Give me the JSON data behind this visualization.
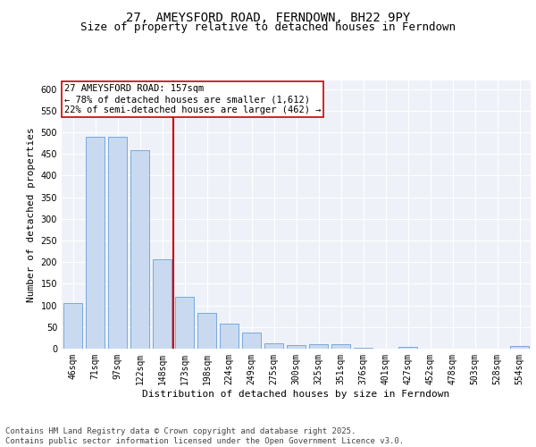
{
  "title": "27, AMEYSFORD ROAD, FERNDOWN, BH22 9PY",
  "subtitle": "Size of property relative to detached houses in Ferndown",
  "xlabel": "Distribution of detached houses by size in Ferndown",
  "ylabel": "Number of detached properties",
  "categories": [
    "46sqm",
    "71sqm",
    "97sqm",
    "122sqm",
    "148sqm",
    "173sqm",
    "198sqm",
    "224sqm",
    "249sqm",
    "275sqm",
    "300sqm",
    "325sqm",
    "351sqm",
    "376sqm",
    "401sqm",
    "427sqm",
    "452sqm",
    "478sqm",
    "503sqm",
    "528sqm",
    "554sqm"
  ],
  "values": [
    105,
    490,
    490,
    458,
    207,
    120,
    82,
    57,
    38,
    13,
    8,
    10,
    10,
    3,
    0,
    5,
    0,
    0,
    0,
    0,
    6
  ],
  "bar_color": "#c9d9f0",
  "bar_edge_color": "#6a9fd8",
  "vline_x_index": 4,
  "vline_color": "#cc0000",
  "annotation_text": "27 AMEYSFORD ROAD: 157sqm\n← 78% of detached houses are smaller (1,612)\n22% of semi-detached houses are larger (462) →",
  "annotation_box_color": "#ffffff",
  "annotation_box_edge": "#cc0000",
  "annotation_fontsize": 7.5,
  "background_color": "#eef2f8",
  "grid_color": "#ffffff",
  "ylim": [
    0,
    620
  ],
  "yticks": [
    0,
    50,
    100,
    150,
    200,
    250,
    300,
    350,
    400,
    450,
    500,
    550,
    600
  ],
  "title_fontsize": 10,
  "subtitle_fontsize": 9,
  "xlabel_fontsize": 8,
  "ylabel_fontsize": 8,
  "tick_fontsize": 7,
  "footer_text": "Contains HM Land Registry data © Crown copyright and database right 2025.\nContains public sector information licensed under the Open Government Licence v3.0.",
  "footer_fontsize": 6.5
}
